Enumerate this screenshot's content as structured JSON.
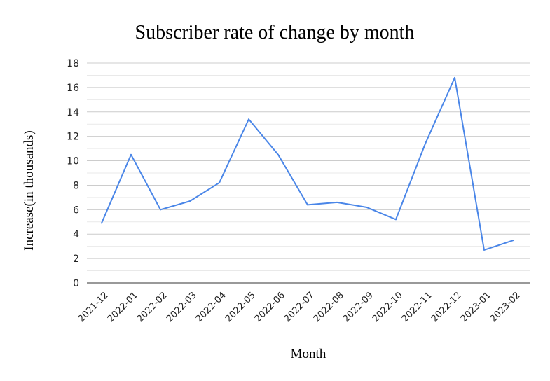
{
  "chart_data": {
    "type": "line",
    "title": "Subscriber rate of change by month",
    "xlabel": "Month",
    "ylabel": "Increase(in thousands)",
    "categories": [
      "2021-12",
      "2022-01",
      "2022-02",
      "2022-03",
      "2022-04",
      "2022-05",
      "2022-06",
      "2022-07",
      "2022-08",
      "2022-09",
      "2022-10",
      "2022-11",
      "2022-12",
      "2023-01",
      "2023-02"
    ],
    "series": [
      {
        "values": [
          4.9,
          10.5,
          6.0,
          6.7,
          8.2,
          13.4,
          10.5,
          6.4,
          6.6,
          6.2,
          5.2,
          11.4,
          16.8,
          2.7,
          3.5
        ],
        "color": "#4a86e8"
      }
    ],
    "ylim": [
      0,
      18
    ],
    "yticks": [
      0,
      2,
      4,
      6,
      8,
      10,
      12,
      14,
      16,
      18
    ],
    "grid": true,
    "legend": "none"
  }
}
